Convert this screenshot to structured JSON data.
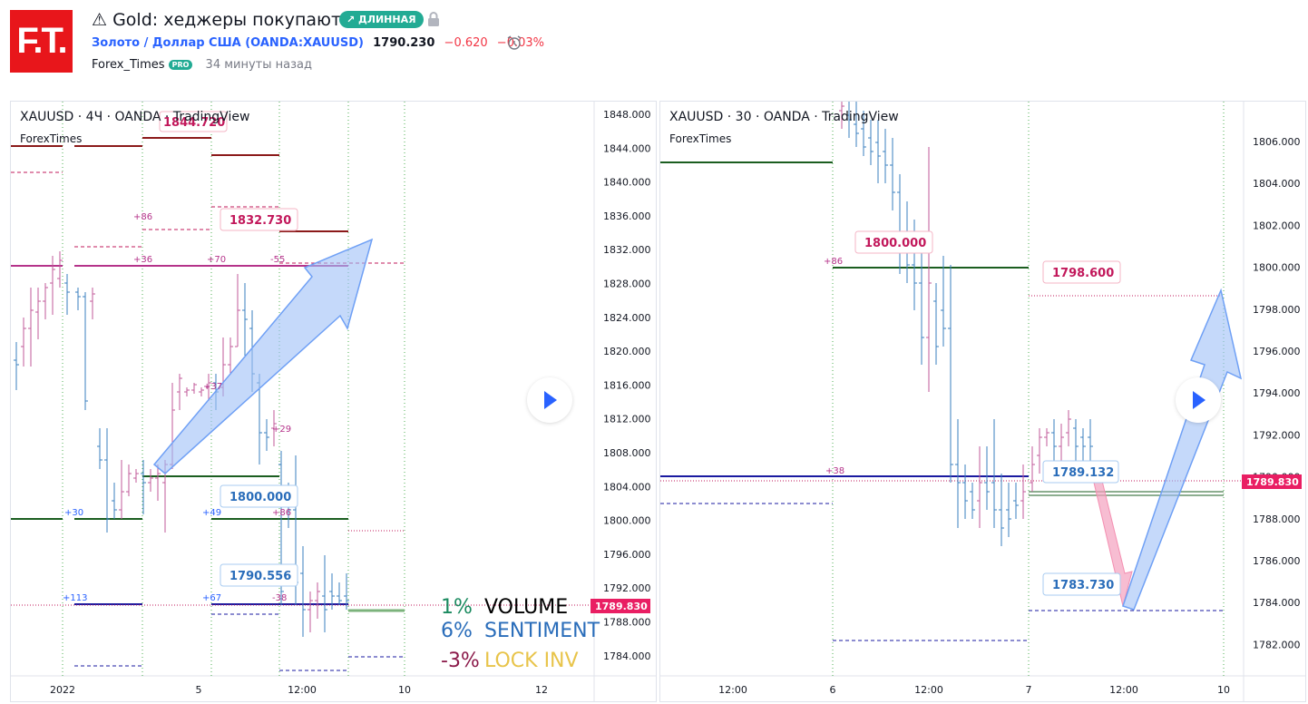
{
  "header": {
    "logo_text": "F.T.",
    "title": "⚠ Gold: хеджеры покупают.",
    "badge": "↗ ДЛИННАЯ",
    "symbol_name": "Золото / Доллар США (OANDA:XAUUSD)",
    "price": "1790.230",
    "change": "−0.620",
    "change_pct": "−0.03%",
    "author": "Forex_Times",
    "pro_badge": "PRO",
    "time_ago": "34 минуты назад"
  },
  "icons": [
    "warning-icon",
    "lock-icon",
    "alarm-icon",
    "play-icon"
  ],
  "colors": {
    "accent": "#2962ff",
    "long_badge": "#22ab94",
    "down": "#f23645",
    "brand": "#e8161b"
  },
  "chart1": {
    "label": "XAUUSD · 4Ч · OANDA · TradingView",
    "sub": "ForexTimes",
    "y_ticks": [
      "1848.000",
      "1844.000",
      "1840.000",
      "1836.000",
      "1832.000",
      "1828.000",
      "1824.000",
      "1820.000",
      "1816.000",
      "1812.000",
      "1808.000",
      "1804.000",
      "1800.000",
      "1796.000",
      "1792.000",
      "1788.000",
      "1784.000"
    ],
    "x_ticks": [
      "2022",
      "5",
      "12:00",
      "10",
      "12"
    ],
    "price_tag": "1789.830",
    "callouts": [
      "1844.720",
      "1832.730",
      "1800.000",
      "1790.556"
    ],
    "small_labels": [
      "+86",
      "+36",
      "+70",
      "-55",
      "+37",
      "+29",
      "+30",
      "+49",
      "+86",
      "+113",
      "+67",
      "-38"
    ],
    "legend": {
      "volume_pct": "1%",
      "volume_label": "VOLUME",
      "sentiment_pct": "6%",
      "sentiment_label": "SENTIMENT",
      "lock_pct": "-3%",
      "lock_label": "LOCK INV"
    }
  },
  "chart2": {
    "label": "XAUUSD · 30 · OANDA · TradingView",
    "sub": "ForexTimes",
    "y_ticks": [
      "1806.000",
      "1804.000",
      "1802.000",
      "1800.000",
      "1798.000",
      "1796.000",
      "1794.000",
      "1792.000",
      "1790.000",
      "1788.000",
      "1786.000",
      "1784.000",
      "1782.000"
    ],
    "x_ticks": [
      "12:00",
      "6",
      "12:00",
      "7",
      "12:00",
      "10"
    ],
    "price_tag": "1789.830",
    "callouts": [
      "1800.000",
      "1798.600",
      "1789.132",
      "1783.730"
    ],
    "small_labels": [
      "+86",
      "+38"
    ]
  }
}
